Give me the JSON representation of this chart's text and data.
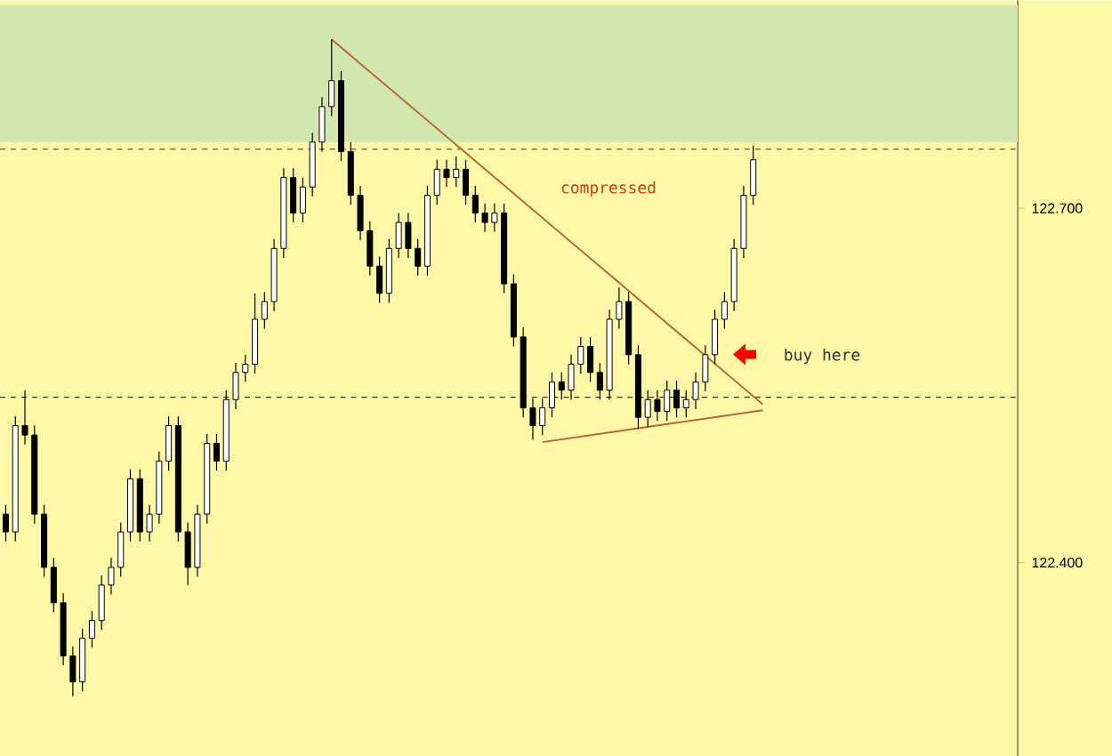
{
  "chart_data": {
    "type": "candlestick",
    "categories": [
      null,
      null,
      null,
      null,
      null,
      null,
      null,
      null,
      null,
      null,
      null,
      null,
      null,
      null,
      null,
      null,
      null,
      null,
      null,
      null,
      null,
      null,
      null,
      null,
      null,
      null,
      null,
      null,
      null,
      null,
      null,
      null,
      null,
      null,
      null,
      null,
      null,
      null,
      null,
      null,
      null,
      null,
      null,
      null,
      null,
      null,
      null,
      null,
      null,
      null,
      null,
      null,
      null,
      null,
      null,
      null,
      null,
      null,
      null,
      null,
      null,
      null,
      null,
      null,
      null,
      null,
      null,
      null,
      null,
      null,
      null,
      null,
      null,
      null,
      null,
      null,
      null,
      null,
      null,
      null,
      null,
      null,
      null,
      null,
      null,
      null,
      null,
      null,
      null,
      null,
      null,
      null,
      null,
      null,
      null,
      null,
      null,
      null,
      null,
      null,
      null,
      null,
      null,
      null,
      null,
      null
    ],
    "ohlc": [
      [
        122.441,
        122.449,
        122.418,
        122.426
      ],
      [
        122.426,
        122.524,
        122.418,
        122.516
      ],
      [
        122.516,
        122.546,
        122.5,
        122.508
      ],
      [
        122.508,
        122.516,
        122.433,
        122.441
      ],
      [
        122.441,
        122.449,
        122.388,
        122.396
      ],
      [
        122.396,
        122.404,
        122.358,
        122.366
      ],
      [
        122.366,
        122.374,
        122.313,
        122.321
      ],
      [
        122.321,
        122.329,
        122.287,
        122.299
      ],
      [
        122.299,
        122.344,
        122.291,
        122.336
      ],
      [
        122.336,
        122.359,
        122.328,
        122.351
      ],
      [
        122.351,
        122.389,
        122.343,
        122.381
      ],
      [
        122.381,
        122.404,
        122.373,
        122.396
      ],
      [
        122.396,
        122.434,
        122.388,
        122.426
      ],
      [
        122.426,
        122.479,
        122.418,
        122.471
      ],
      [
        122.471,
        122.479,
        122.418,
        122.426
      ],
      [
        122.426,
        122.449,
        122.418,
        122.441
      ],
      [
        122.441,
        122.494,
        122.433,
        122.486
      ],
      [
        122.486,
        122.524,
        122.478,
        122.516
      ],
      [
        122.516,
        122.524,
        122.418,
        122.426
      ],
      [
        122.426,
        122.434,
        122.381,
        122.396
      ],
      [
        122.396,
        122.449,
        122.388,
        122.441
      ],
      [
        122.441,
        122.509,
        122.433,
        122.501
      ],
      [
        122.501,
        122.509,
        122.478,
        122.486
      ],
      [
        122.486,
        122.546,
        122.478,
        122.538
      ],
      [
        122.538,
        122.569,
        122.53,
        122.561
      ],
      [
        122.561,
        122.576,
        122.553,
        122.568
      ],
      [
        122.568,
        122.628,
        122.56,
        122.606
      ],
      [
        122.606,
        122.629,
        122.598,
        122.621
      ],
      [
        122.621,
        122.674,
        122.613,
        122.666
      ],
      [
        122.666,
        122.734,
        122.658,
        122.726
      ],
      [
        122.726,
        122.734,
        122.688,
        122.696
      ],
      [
        122.696,
        122.726,
        122.688,
        122.718
      ],
      [
        122.718,
        122.764,
        122.71,
        122.756
      ],
      [
        122.756,
        122.794,
        122.748,
        122.786
      ],
      [
        122.786,
        122.843,
        122.778,
        122.808
      ],
      [
        122.808,
        122.816,
        122.74,
        122.748
      ],
      [
        122.748,
        122.756,
        122.703,
        122.711
      ],
      [
        122.711,
        122.719,
        122.673,
        122.681
      ],
      [
        122.681,
        122.689,
        122.643,
        122.651
      ],
      [
        122.651,
        122.659,
        122.62,
        122.628
      ],
      [
        122.628,
        122.674,
        122.62,
        122.666
      ],
      [
        122.666,
        122.696,
        122.658,
        122.688
      ],
      [
        122.688,
        122.696,
        122.658,
        122.666
      ],
      [
        122.666,
        122.674,
        122.643,
        122.651
      ],
      [
        122.651,
        122.719,
        122.643,
        122.711
      ],
      [
        122.711,
        122.741,
        122.703,
        122.733
      ],
      [
        122.733,
        122.741,
        122.718,
        122.726
      ],
      [
        122.726,
        122.744,
        122.718,
        122.733
      ],
      [
        122.733,
        122.741,
        122.703,
        122.711
      ],
      [
        122.711,
        122.719,
        122.688,
        122.696
      ],
      [
        122.696,
        122.704,
        122.68,
        122.688
      ],
      [
        122.688,
        122.704,
        122.68,
        122.696
      ],
      [
        122.696,
        122.704,
        122.628,
        122.636
      ],
      [
        122.636,
        122.644,
        122.583,
        122.591
      ],
      [
        122.591,
        122.599,
        122.523,
        122.531
      ],
      [
        122.531,
        122.539,
        122.504,
        122.516
      ],
      [
        122.516,
        122.539,
        122.508,
        122.531
      ],
      [
        122.531,
        122.561,
        122.523,
        122.553
      ],
      [
        122.553,
        122.561,
        122.538,
        122.546
      ],
      [
        122.546,
        122.576,
        122.538,
        122.568
      ],
      [
        122.568,
        122.591,
        122.56,
        122.583
      ],
      [
        122.583,
        122.591,
        122.553,
        122.561
      ],
      [
        122.561,
        122.569,
        122.538,
        122.546
      ],
      [
        122.546,
        122.614,
        122.538,
        122.606
      ],
      [
        122.606,
        122.633,
        122.598,
        122.621
      ],
      [
        122.621,
        122.629,
        122.568,
        122.576
      ],
      [
        122.576,
        122.584,
        122.513,
        122.523
      ],
      [
        122.523,
        122.546,
        122.515,
        122.538
      ],
      [
        122.538,
        122.546,
        122.52,
        122.528
      ],
      [
        122.528,
        122.554,
        122.52,
        122.546
      ],
      [
        122.546,
        122.554,
        122.523,
        122.531
      ],
      [
        122.531,
        122.546,
        122.523,
        122.538
      ],
      [
        122.538,
        122.561,
        122.53,
        122.553
      ],
      [
        122.553,
        122.584,
        122.545,
        122.576
      ],
      [
        122.576,
        122.614,
        122.568,
        122.606
      ],
      [
        122.606,
        122.629,
        122.598,
        122.621
      ],
      [
        122.621,
        122.674,
        122.613,
        122.666
      ],
      [
        122.666,
        122.719,
        122.658,
        122.711
      ],
      [
        122.711,
        122.753,
        122.703,
        122.741
      ],
      null,
      null,
      null,
      null,
      null,
      null,
      null,
      null,
      null,
      null,
      null,
      null,
      null,
      null,
      null,
      null,
      null,
      null,
      null,
      null,
      null,
      null,
      null,
      null,
      null,
      null,
      null
    ],
    "series": [
      {
        "type": "line",
        "color": "#b5622e",
        "values": [
          null,
          null,
          null,
          null,
          null,
          null,
          null,
          null,
          null,
          null,
          null,
          null,
          null,
          null,
          null,
          null,
          null,
          null,
          null,
          null,
          null,
          null,
          null,
          null,
          null,
          null,
          null,
          null,
          null,
          null,
          null,
          null,
          null,
          null,
          122.843,
          null,
          null,
          null,
          null,
          null,
          null,
          null,
          null,
          null,
          null,
          null,
          null,
          null,
          null,
          null,
          null,
          null,
          null,
          null,
          null,
          null,
          null,
          null,
          null,
          null,
          null,
          null,
          null,
          null,
          null,
          null,
          null,
          null,
          null,
          null,
          null,
          null,
          null,
          null,
          null,
          null,
          null,
          null,
          null,
          122.534,
          null,
          null,
          null,
          null,
          null,
          null,
          null,
          null,
          null,
          null,
          null,
          null,
          null,
          null,
          null,
          null,
          null,
          null,
          null,
          null,
          null,
          null,
          null,
          null,
          null,
          null
        ]
      },
      {
        "type": "line",
        "color": "#b5622e",
        "values": [
          null,
          null,
          null,
          null,
          null,
          null,
          null,
          null,
          null,
          null,
          null,
          null,
          null,
          null,
          null,
          null,
          null,
          null,
          null,
          null,
          null,
          null,
          null,
          null,
          null,
          null,
          null,
          null,
          null,
          null,
          null,
          null,
          null,
          null,
          null,
          null,
          null,
          null,
          null,
          null,
          null,
          null,
          null,
          null,
          null,
          null,
          null,
          null,
          null,
          null,
          null,
          null,
          null,
          null,
          null,
          null,
          122.502,
          null,
          null,
          null,
          null,
          null,
          null,
          null,
          null,
          null,
          null,
          null,
          null,
          null,
          null,
          null,
          null,
          null,
          null,
          null,
          null,
          null,
          null,
          122.529,
          null,
          null,
          null,
          null,
          null,
          null,
          null,
          null,
          null,
          null,
          null,
          null,
          null,
          null,
          null,
          null,
          null,
          null,
          null,
          null,
          null,
          null,
          null,
          null,
          null,
          null
        ]
      }
    ],
    "ylim": [
      122.236,
      122.876
    ],
    "yticks": [
      {
        "value": 122.4,
        "label": "122.400"
      },
      {
        "value": 122.7,
        "label": "122.700"
      }
    ],
    "tick_labels": "y",
    "bands": [
      {
        "axis": "y",
        "from": 122.756,
        "to": 122.872,
        "color": "#d2e6b0"
      }
    ],
    "ref_lines": [
      {
        "axis": "y",
        "value": 122.75,
        "color": "#333333",
        "line_style": "dashed"
      },
      {
        "axis": "y",
        "value": 122.54,
        "color": "#333333",
        "line_style": "dashed"
      }
    ],
    "annotations": [
      "compressed",
      "buy here"
    ]
  }
}
